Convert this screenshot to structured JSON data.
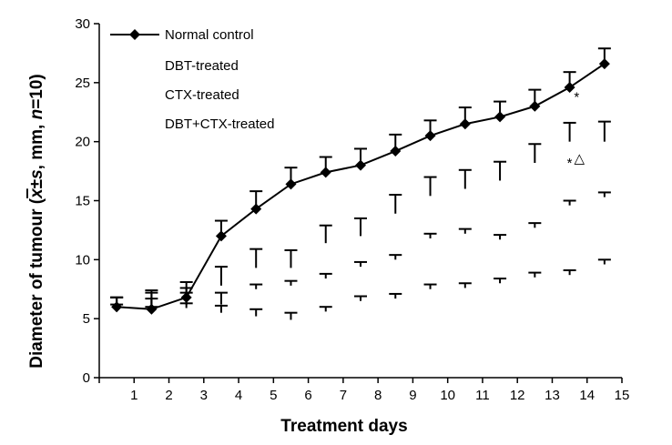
{
  "chart_data": {
    "type": "line",
    "title": "",
    "xlabel": "Treatment days",
    "ylabel_parts": {
      "prefix": "Diameter of tumour (",
      "xbar": "x",
      "pm": "±",
      "s": "s",
      "mid": ", mm, ",
      "n": "n",
      "suffix": "=10)"
    },
    "xlim": [
      0,
      15
    ],
    "ylim": [
      0,
      30
    ],
    "xticks": [
      1,
      2,
      3,
      4,
      5,
      6,
      7,
      8,
      9,
      10,
      11,
      12,
      13,
      14,
      15
    ],
    "yticks": [
      0,
      5,
      10,
      15,
      20,
      25,
      30
    ],
    "legend_position": "top-left",
    "grid": false,
    "x": [
      0.5,
      1.5,
      2.5,
      3.5,
      4.5,
      5.5,
      6.5,
      7.5,
      8.5,
      9.5,
      10.5,
      11.5,
      12.5,
      13.5,
      14.5
    ],
    "series": [
      {
        "name": "Normal control",
        "values": [
          6.0,
          5.8,
          6.8,
          12.0,
          14.3,
          16.4,
          17.4,
          18.0,
          19.2,
          20.5,
          21.5,
          22.1,
          23.0,
          24.6,
          26.6
        ],
        "errors": [
          0.8,
          0.9,
          1.3,
          1.3,
          1.5,
          1.4,
          1.3,
          1.4,
          1.4,
          1.3,
          1.4,
          1.3,
          1.4,
          1.3,
          1.3
        ],
        "marker": "diamond",
        "line": true,
        "color": "#000000"
      },
      {
        "name": "DBT-treated",
        "values": [
          6.1,
          6.2,
          6.2,
          7.8,
          9.3,
          9.3,
          11.4,
          12.0,
          13.9,
          15.4,
          16.0,
          16.7,
          18.2,
          20.0,
          20.0
        ],
        "errors": [
          0.7,
          1.2,
          1.4,
          1.6,
          1.6,
          1.5,
          1.5,
          1.5,
          1.6,
          1.6,
          1.6,
          1.6,
          1.6,
          1.6,
          1.7
        ],
        "marker": "none",
        "line": false,
        "color": "#000000"
      },
      {
        "name": "CTX-treated",
        "values": [
          6.2,
          6.2,
          6.2,
          6.2,
          7.5,
          7.8,
          8.4,
          9.4,
          10.0,
          11.8,
          12.2,
          11.7,
          12.7,
          14.6,
          15.3
        ],
        "errors": [
          0.6,
          1.0,
          1.0,
          1.0,
          0.4,
          0.4,
          0.4,
          0.4,
          0.4,
          0.4,
          0.4,
          0.4,
          0.4,
          0.4,
          0.4
        ],
        "marker": "none",
        "line": false,
        "color": "#000000"
      },
      {
        "name": "DBT+CTX-treated",
        "values": [
          5.6,
          5.6,
          5.9,
          5.5,
          5.2,
          4.9,
          5.6,
          6.5,
          6.7,
          7.5,
          7.6,
          8.0,
          8.5,
          8.7,
          9.6
        ],
        "errors": [
          0.6,
          0.4,
          0.4,
          0.6,
          0.6,
          0.6,
          0.4,
          0.4,
          0.4,
          0.4,
          0.4,
          0.4,
          0.4,
          0.4,
          0.4
        ],
        "marker": "none",
        "line": false,
        "color": "#000000"
      }
    ],
    "annotations": [
      {
        "text": "*",
        "x": 13.7,
        "y": 23.8
      },
      {
        "text": "*",
        "x": 13.5,
        "y": 18.2
      },
      {
        "text": "△",
        "x": 13.78,
        "y": 18.6
      }
    ]
  }
}
